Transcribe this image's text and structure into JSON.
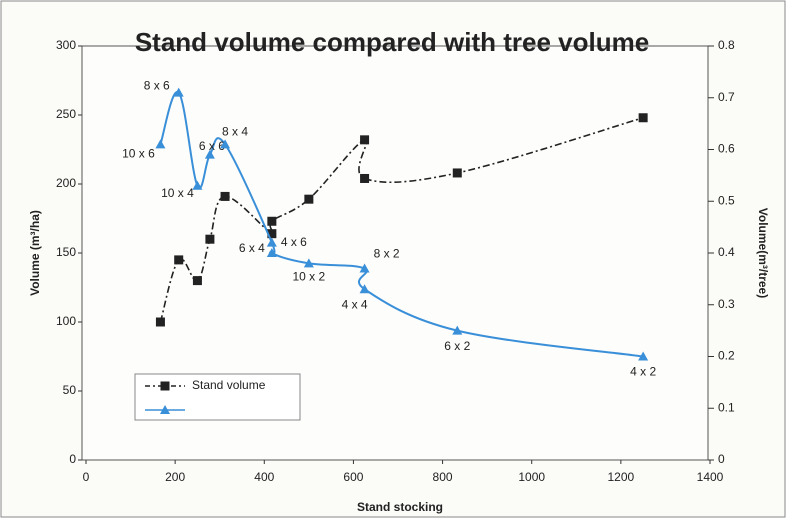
{
  "chart_data": {
    "type": "line",
    "title": "Stand volume compared with tree volume",
    "xlabel": "Stand stocking",
    "ylabel": "Volume (m³/ha)",
    "y2label": "Volume(m³/tree)",
    "xlim": [
      0,
      1400
    ],
    "xticks": [
      0,
      200,
      400,
      600,
      800,
      1000,
      1200,
      1400
    ],
    "ylim": [
      0,
      300
    ],
    "yticks": [
      0,
      50,
      100,
      150,
      200,
      250,
      300
    ],
    "y2lim": [
      0,
      0.8
    ],
    "y2ticks": [
      0,
      0.1,
      0.2,
      0.3,
      0.4,
      0.5,
      0.6,
      0.7,
      0.8
    ],
    "legend": "lower left",
    "series": [
      {
        "name": "Stand volume",
        "color": "#222222",
        "marker": "square",
        "axis": "y",
        "x": [
          167,
          208,
          250,
          278,
          312,
          417,
          417,
          500,
          625,
          625,
          833,
          1250
        ],
        "values": [
          100,
          145,
          130,
          160,
          191,
          164,
          173,
          189,
          232,
          204,
          208,
          248
        ]
      },
      {
        "color": "#3a8fd9",
        "marker": "triangle",
        "axis": "y2",
        "x": [
          167,
          208,
          250,
          278,
          312,
          417,
          417,
          500,
          625,
          625,
          833,
          1250
        ],
        "values": [
          0.61,
          0.71,
          0.53,
          0.59,
          0.61,
          0.42,
          0.4,
          0.38,
          0.37,
          0.33,
          0.25,
          0.2
        ],
        "point_labels": [
          "10 x 6",
          "8 x 6",
          "10 x 4",
          "6 x 6",
          "8 x 4",
          "4 x 6",
          "6 x 4",
          "10 x 2",
          "8 x 2",
          "4 x 4",
          "6 x 2",
          "4 x 2"
        ]
      }
    ]
  }
}
